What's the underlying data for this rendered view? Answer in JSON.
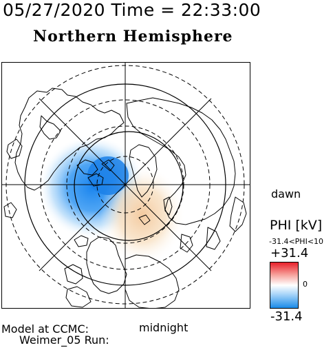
{
  "header": {
    "timestamp": "05/27/2020 Time = 22:33:00",
    "hemisphere_title": "Northern Hemisphere"
  },
  "map": {
    "orientation_right": "dawn",
    "orientation_bottom": "midnight",
    "contour_field": "PHI"
  },
  "colorbar": {
    "variable_label": "PHI [kV]",
    "range_text": "-31.4<PHI<10",
    "max_label": "+31.4",
    "zero_label": "0",
    "min_label": "-31.4",
    "colors": {
      "positive": "#e8202a",
      "mid": "#ffffff",
      "negative": "#1a8be8"
    }
  },
  "footer": {
    "model_line": "Model at CCMC:",
    "run_line": "Weimer_05 Run:"
  }
}
